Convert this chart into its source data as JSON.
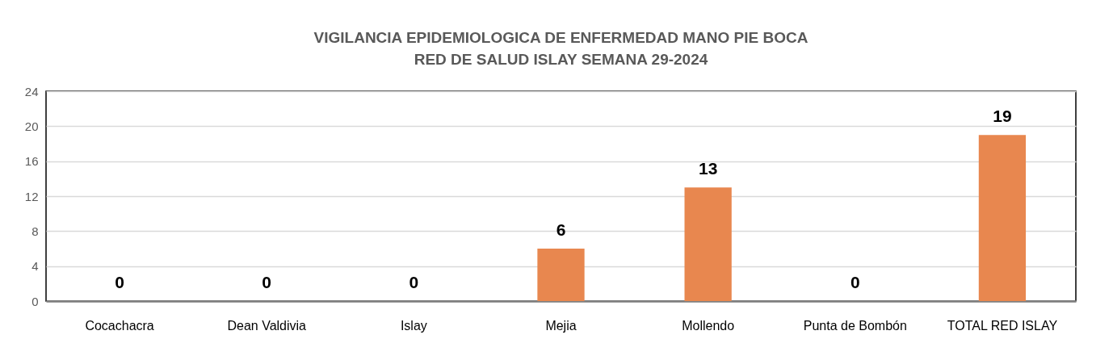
{
  "chart_data": {
    "type": "bar",
    "title": "VIGILANCIA EPIDEMIOLOGICA DE ENFERMEDAD MANO PIE BOCA",
    "subtitle": "RED DE SALUD ISLAY      SEMANA 29-2024",
    "categories": [
      "Cocachacra",
      "Dean Valdivia",
      "Islay",
      "Mejia",
      "Mollendo",
      "Punta de Bombón",
      "TOTAL RED ISLAY"
    ],
    "values": [
      0,
      0,
      0,
      6,
      13,
      0,
      19
    ],
    "color": "#e8874f",
    "ylim": [
      0,
      24
    ],
    "yticks": [
      0,
      4,
      8,
      12,
      16,
      20,
      24
    ],
    "grid": "y",
    "data_labels": true
  }
}
